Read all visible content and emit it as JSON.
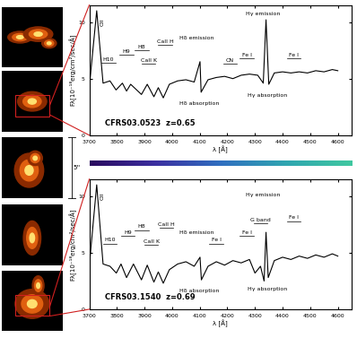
{
  "scale_label": "5''",
  "chart_data": [
    {
      "type": "line",
      "title": "CFRS03.0523  z=0.65",
      "color": "#000000",
      "x_label": "λ [Å]",
      "y_label": "Fλ[10⁻¹⁸erg/cm²/sec/Å]",
      "x": [
        3700,
        3727,
        3750,
        3775,
        3797,
        3820,
        3835,
        3850,
        3889,
        3910,
        3934,
        3950,
        3968,
        3990,
        4020,
        4050,
        4080,
        4101,
        4105,
        4130,
        4160,
        4190,
        4220,
        4250,
        4280,
        4310,
        4330,
        4340,
        4350,
        4370,
        4400,
        4430,
        4460,
        4490,
        4520,
        4550,
        4580,
        4600
      ],
      "values": [
        4.2,
        11.0,
        4.6,
        4.8,
        4.0,
        4.6,
        3.9,
        4.5,
        3.6,
        4.5,
        3.4,
        4.2,
        3.3,
        4.5,
        4.8,
        4.9,
        4.7,
        6.5,
        3.8,
        4.9,
        5.1,
        5.2,
        5.0,
        5.3,
        5.4,
        5.3,
        4.6,
        10.2,
        4.5,
        5.5,
        5.6,
        5.5,
        5.6,
        5.5,
        5.7,
        5.6,
        5.8,
        5.7
      ],
      "xlim": [
        3700,
        4650
      ],
      "ylim": [
        0,
        11.5
      ],
      "xticks": [
        3700,
        3800,
        3900,
        4000,
        4100,
        4200,
        4300,
        4400,
        4500,
        4600
      ],
      "yticks": [
        0,
        5,
        10
      ],
      "vertical_labels": [
        {
          "text": "OII",
          "x": 3740,
          "y": 10.0
        }
      ],
      "line_labels": [
        {
          "text": "H10",
          "x": 3770,
          "y": 6.5
        },
        {
          "text": "H9",
          "x": 3835,
          "y": 7.2
        },
        {
          "text": "H8",
          "x": 3890,
          "y": 7.6
        },
        {
          "text": "CaII K",
          "x": 3915,
          "y": 6.4
        },
        {
          "text": "CaII H",
          "x": 3975,
          "y": 8.1
        },
        {
          "text": "CN",
          "x": 4210,
          "y": 6.4
        },
        {
          "text": "Fe I",
          "x": 4270,
          "y": 6.9
        },
        {
          "text": "Fe I",
          "x": 4440,
          "y": 6.9
        }
      ],
      "notes": [
        {
          "text": "Hδ emission",
          "x": 4090,
          "y": 8.4
        },
        {
          "text": "Hδ absorption",
          "x": 4100,
          "y": 2.6
        },
        {
          "text": "Hγ emission",
          "x": 4330,
          "y": 10.5
        },
        {
          "text": "Hγ absorption",
          "x": 4345,
          "y": 3.3
        }
      ]
    },
    {
      "type": "line",
      "title": "CFRS03.1540  z=0.69",
      "color": "#000000",
      "x_label": "λ [Å]",
      "y_label": "Fλ[10⁻¹⁸erg/cm²/sec/Å]",
      "x": [
        3700,
        3727,
        3750,
        3775,
        3798,
        3815,
        3835,
        3860,
        3889,
        3910,
        3934,
        3950,
        3968,
        3990,
        4020,
        4050,
        4080,
        4101,
        4106,
        4130,
        4160,
        4190,
        4220,
        4250,
        4280,
        4300,
        4320,
        4333,
        4340,
        4348,
        4370,
        4400,
        4430,
        4460,
        4490,
        4520,
        4550,
        4580,
        4600
      ],
      "values": [
        3.8,
        11.0,
        4.0,
        3.8,
        3.2,
        4.0,
        2.8,
        4.0,
        2.6,
        3.9,
        2.4,
        3.3,
        2.3,
        3.5,
        4.0,
        4.2,
        3.8,
        4.6,
        2.6,
        3.8,
        4.2,
        3.9,
        4.3,
        4.1,
        4.4,
        3.2,
        3.8,
        2.5,
        6.8,
        2.8,
        4.3,
        4.6,
        4.4,
        4.7,
        4.5,
        4.8,
        4.6,
        4.9,
        4.7
      ],
      "xlim": [
        3700,
        4650
      ],
      "ylim": [
        0,
        11.5
      ],
      "xticks": [
        3700,
        3800,
        3900,
        4000,
        4100,
        4200,
        4300,
        4400,
        4500,
        4600
      ],
      "yticks": [
        0,
        5,
        10
      ],
      "vertical_labels": [
        {
          "text": "OII",
          "x": 3740,
          "y": 10.0
        }
      ],
      "line_labels": [
        {
          "text": "H10",
          "x": 3775,
          "y": 5.9
        },
        {
          "text": "H9",
          "x": 3840,
          "y": 6.6
        },
        {
          "text": "H8",
          "x": 3890,
          "y": 7.1
        },
        {
          "text": "CaII K",
          "x": 3925,
          "y": 5.8
        },
        {
          "text": "CaII H",
          "x": 3980,
          "y": 7.3
        },
        {
          "text": "Fe I",
          "x": 4160,
          "y": 5.9
        },
        {
          "text": "Fe I",
          "x": 4270,
          "y": 6.6
        },
        {
          "text": "G band",
          "x": 4320,
          "y": 7.7
        },
        {
          "text": "Fe I",
          "x": 4440,
          "y": 7.9
        }
      ],
      "notes": [
        {
          "text": "Hδ emission",
          "x": 4090,
          "y": 6.6
        },
        {
          "text": "Hδ absorption",
          "x": 4100,
          "y": 1.4
        },
        {
          "text": "Hγ emission",
          "x": 4330,
          "y": 9.9
        },
        {
          "text": "Hγ absorption",
          "x": 4345,
          "y": 1.6
        }
      ]
    }
  ]
}
